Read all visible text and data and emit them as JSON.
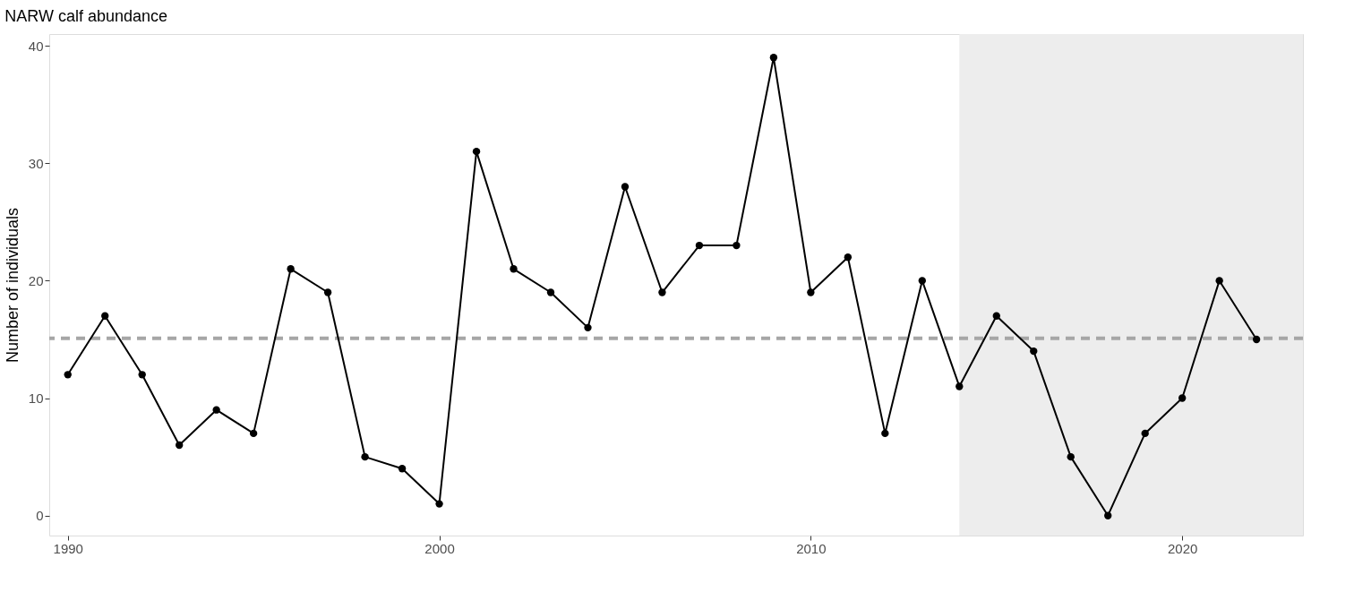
{
  "chart_data": {
    "type": "line",
    "title": "NARW calf abundance",
    "ylabel": "Number of individuals",
    "x": [
      1990,
      1991,
      1992,
      1993,
      1994,
      1995,
      1996,
      1997,
      1998,
      1999,
      2000,
      2001,
      2002,
      2003,
      2004,
      2005,
      2006,
      2007,
      2008,
      2009,
      2010,
      2011,
      2012,
      2013,
      2014,
      2015,
      2016,
      2017,
      2018,
      2019,
      2020,
      2021,
      2022
    ],
    "series": [
      {
        "color": "#000000",
        "values": [
          12,
          17,
          12,
          6,
          9,
          7,
          21,
          19,
          5,
          4,
          1,
          31,
          21,
          19,
          16,
          28,
          19,
          23,
          23,
          39,
          19,
          22,
          7,
          20,
          11,
          17,
          14,
          5,
          0,
          7,
          10,
          20,
          15
        ]
      }
    ],
    "xlim": [
      1989.5,
      2023.25
    ],
    "xticks": [
      1990,
      2000,
      2010,
      2020
    ],
    "ylim": [
      -1.7,
      41
    ],
    "yticks": [
      0,
      10,
      20,
      30,
      40
    ],
    "ref_lines": [
      {
        "axis": "y",
        "value": 15.1,
        "color": "#a6a6a6",
        "line_style": "dashed"
      }
    ],
    "bands": [
      {
        "axis": "x",
        "from": 2014,
        "to": 2023.25,
        "color": "#ededed"
      }
    ],
    "grid": false,
    "marker": "circle",
    "line_style": "solid"
  }
}
